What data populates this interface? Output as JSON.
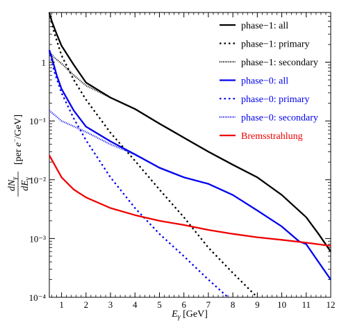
{
  "chart_data": {
    "type": "line",
    "title": "",
    "xlabel": "E_γ [GeV]",
    "ylabel": "dN_γ/dE_γ [per e⁻/GeV]",
    "xlim": [
      0.5,
      12
    ],
    "ylim": [
      0.0001,
      7
    ],
    "yscale": "log",
    "grid": false,
    "legend_position": "top-right",
    "x_ticks": [
      "1",
      "2",
      "3",
      "4",
      "5",
      "6",
      "7",
      "8",
      "9",
      "10",
      "11",
      "12"
    ],
    "y_ticks": [
      "10⁻⁴",
      "10⁻³",
      "10⁻²",
      "10⁻¹",
      "1"
    ],
    "series": [
      {
        "name": "phase−1: all",
        "color": "#000000",
        "dash": "solid",
        "x": [
          0.5,
          0.6,
          0.8,
          1.0,
          1.5,
          2.0,
          3.0,
          4.0,
          5.0,
          6.0,
          7.0,
          8.0,
          9.0,
          10.0,
          11.0,
          11.5,
          12.0
        ],
        "y": [
          7,
          5,
          3,
          1.9,
          0.9,
          0.45,
          0.25,
          0.16,
          0.09,
          0.052,
          0.03,
          0.018,
          0.011,
          0.0055,
          0.0023,
          0.0012,
          0.0006
        ]
      },
      {
        "name": "phase−1: primary",
        "color": "#000000",
        "dash": "dot",
        "x": [
          0.5,
          0.7,
          1.0,
          1.5,
          2.0,
          3.0,
          4.0,
          5.0,
          6.0,
          7.0,
          8.0,
          9.0
        ],
        "y": [
          7,
          3.2,
          1.3,
          0.5,
          0.23,
          0.063,
          0.021,
          0.0068,
          0.0023,
          0.0007,
          0.00026,
          0.0001
        ]
      },
      {
        "name": "phase−1: secondary",
        "color": "#000000",
        "dash": "dense-dot",
        "x": [
          0.5,
          0.7,
          1.0,
          1.5,
          2.0,
          3.0,
          4.0,
          5.0,
          6.0,
          7.0,
          8.0
        ],
        "y": [
          1.5,
          1.2,
          0.95,
          0.6,
          0.4,
          0.25,
          0.16,
          0.09,
          0.052,
          0.03,
          0.018
        ]
      },
      {
        "name": "phase−0: all",
        "color": "#0000ee",
        "dash": "solid",
        "x": [
          0.5,
          0.6,
          0.8,
          1.0,
          1.5,
          2.0,
          3.0,
          4.0,
          5.0,
          6.0,
          7.0,
          8.0,
          9.0,
          10.0,
          10.7,
          11.0,
          11.5,
          12.0
        ],
        "y": [
          1.6,
          1.2,
          0.6,
          0.35,
          0.15,
          0.08,
          0.045,
          0.027,
          0.016,
          0.011,
          0.0085,
          0.0055,
          0.003,
          0.0016,
          0.0009,
          0.0008,
          0.0004,
          0.0002
        ]
      },
      {
        "name": "phase−0: primary",
        "color": "#0000ee",
        "dash": "dot",
        "x": [
          0.5,
          0.7,
          1.0,
          1.5,
          2.0,
          3.0,
          4.0,
          5.0,
          6.0,
          7.0,
          7.8
        ],
        "y": [
          1.6,
          0.7,
          0.3,
          0.11,
          0.047,
          0.011,
          0.0033,
          0.0012,
          0.0005,
          0.0002,
          0.0001
        ]
      },
      {
        "name": "phase−0: secondary",
        "color": "#0000ee",
        "dash": "dense-dot",
        "x": [
          0.5,
          1.0,
          2.0,
          3.0,
          4.0,
          5.0,
          6.0,
          7.0
        ],
        "y": [
          0.15,
          0.1,
          0.065,
          0.04,
          0.027,
          0.016,
          0.011,
          0.0085
        ]
      },
      {
        "name": "Bremsstrahlung",
        "color": "#ee0000",
        "dash": "solid",
        "x": [
          0.5,
          1.0,
          1.5,
          2.0,
          3.0,
          4.0,
          5.0,
          6.0,
          7.0,
          8.0,
          9.0,
          10.0,
          11.0,
          12.0
        ],
        "y": [
          0.026,
          0.011,
          0.0068,
          0.005,
          0.0033,
          0.0025,
          0.002,
          0.0017,
          0.0014,
          0.0012,
          0.00105,
          0.00095,
          0.00085,
          0.00075
        ]
      }
    ]
  }
}
